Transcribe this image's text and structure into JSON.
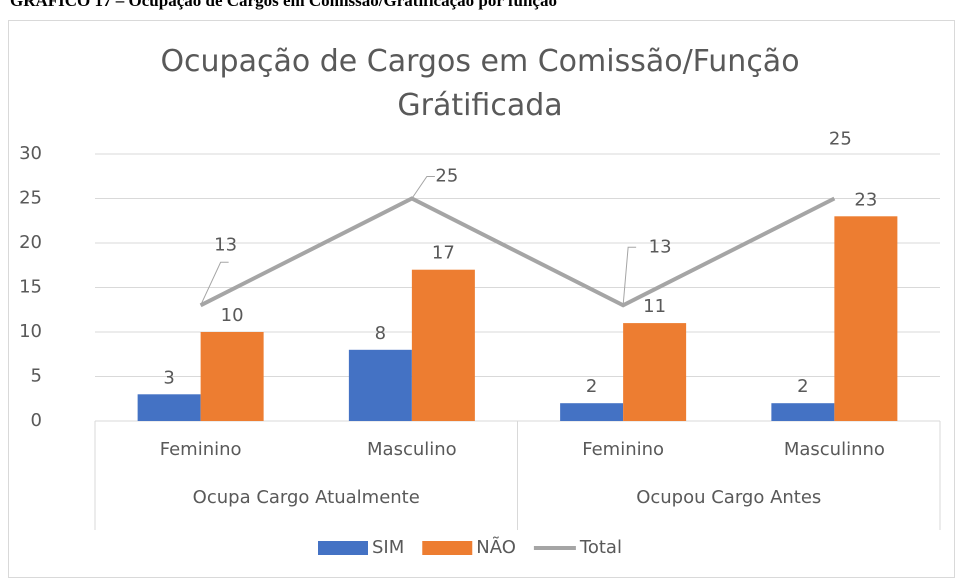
{
  "caption": "GRÁFICO 17 – Ocupação de Cargos em Comissão/Gratificação por função",
  "chart_data": {
    "type": "bar",
    "title": "Ocupação de Cargos em Comissão/Função Grátificada",
    "categories": [
      "Feminino",
      "Masculino",
      "Feminino",
      "Masculinno"
    ],
    "group_labels": [
      "Ocupa Cargo Atualmente",
      "Ocupou Cargo Antes"
    ],
    "series": [
      {
        "name": "SIM",
        "color": "#4472c4",
        "type": "bar",
        "values": [
          3,
          8,
          2,
          2
        ]
      },
      {
        "name": "NÃO",
        "color": "#ed7d31",
        "type": "bar",
        "values": [
          10,
          17,
          11,
          23
        ]
      },
      {
        "name": "Total",
        "color": "#a5a5a5",
        "type": "line",
        "values": [
          13,
          25,
          13,
          25
        ]
      }
    ],
    "ylim": [
      0,
      30
    ],
    "yticks": [
      0,
      5,
      10,
      15,
      20,
      25,
      30
    ],
    "grid": true,
    "legend": "bottom"
  }
}
